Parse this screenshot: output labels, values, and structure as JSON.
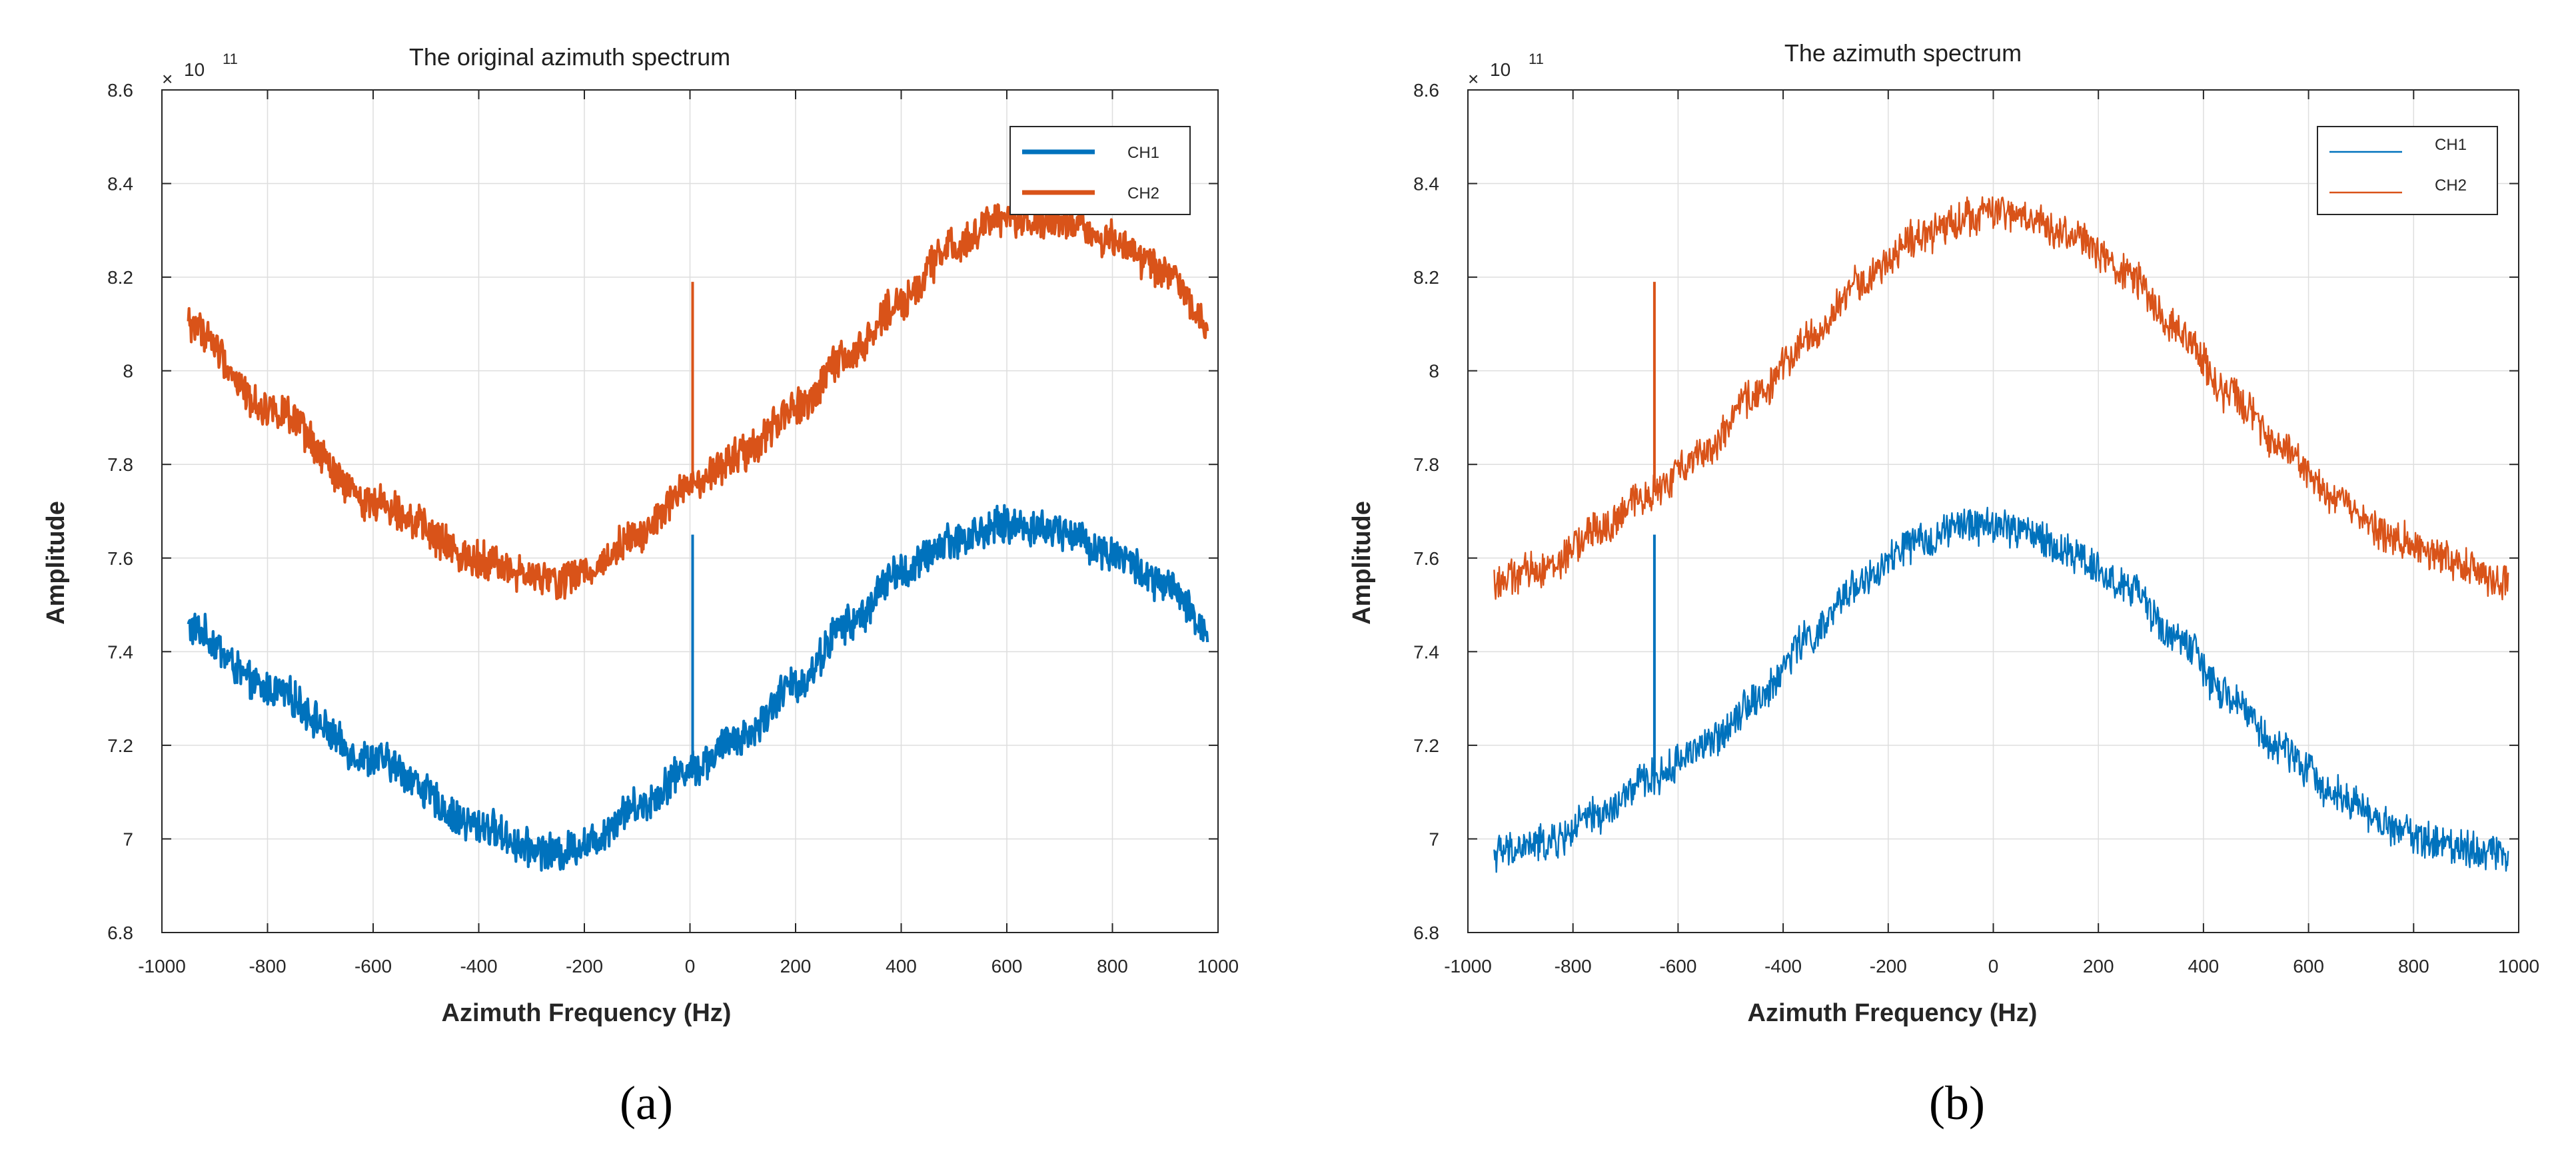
{
  "chart_data": [
    {
      "type": "line",
      "title": "The original azimuth spectrum",
      "panel_label": "(a)",
      "xlabel": "Azimuth Frequency (Hz)",
      "ylabel": "Amplitude",
      "exponent_label": "10",
      "exponent_power": "11",
      "xlim": [
        -1000,
        1000
      ],
      "ylim": [
        6.8,
        8.6
      ],
      "x_tick_labels": [
        "-1000",
        "-800",
        "-600",
        "-400",
        "-200",
        "0",
        "200",
        "400",
        "600",
        "800",
        "1000"
      ],
      "y_tick_labels": [
        "6.8",
        "7",
        "7.2",
        "7.4",
        "7.6",
        "7.8",
        "8",
        "8.2",
        "8.4",
        "8.6"
      ],
      "grid": true,
      "legend_position": "top-right",
      "legend_line_style": "thick",
      "x_range": [
        -950,
        980
      ],
      "series": [
        {
          "name": "CH1",
          "color": "#0072BD",
          "x": [
            -950,
            -800,
            -600,
            -400,
            -300,
            -250,
            -200,
            -100,
            0,
            100,
            200,
            300,
            400,
            500,
            600,
            700,
            800,
            900,
            980
          ],
          "values": [
            7.45,
            7.32,
            7.17,
            7.03,
            6.98,
            6.97,
            6.99,
            7.07,
            7.15,
            7.22,
            7.33,
            7.46,
            7.57,
            7.64,
            7.67,
            7.66,
            7.61,
            7.54,
            7.45
          ],
          "noise_amplitude": 0.035,
          "spike": {
            "x": 5,
            "to": 7.65
          }
        },
        {
          "name": "CH2",
          "color": "#D95319",
          "x": [
            -950,
            -800,
            -600,
            -400,
            -300,
            -250,
            -200,
            -100,
            0,
            100,
            200,
            300,
            400,
            500,
            600,
            700,
            800,
            900,
            980
          ],
          "values": [
            8.1,
            7.92,
            7.72,
            7.6,
            7.56,
            7.55,
            7.57,
            7.65,
            7.75,
            7.82,
            7.92,
            8.03,
            8.15,
            8.27,
            8.33,
            8.32,
            8.28,
            8.21,
            8.1
          ],
          "noise_amplitude": 0.035,
          "spike": {
            "x": 5,
            "to": 8.19
          }
        }
      ]
    },
    {
      "type": "line",
      "title": "The azimuth spectrum",
      "panel_label": "(b)",
      "xlabel": "Azimuth Frequency (Hz)",
      "ylabel": "Amplitude",
      "exponent_label": "10",
      "exponent_power": "11",
      "xlim": [
        -1000,
        1000
      ],
      "ylim": [
        6.8,
        8.6
      ],
      "x_tick_labels": [
        "-1000",
        "-800",
        "-600",
        "-400",
        "-200",
        "0",
        "200",
        "400",
        "600",
        "800",
        "1000"
      ],
      "y_tick_labels": [
        "6.8",
        "7",
        "7.2",
        "7.4",
        "7.6",
        "7.8",
        "8",
        "8.2",
        "8.4",
        "8.6"
      ],
      "grid": true,
      "legend_position": "top-right",
      "legend_line_style": "thin",
      "x_range": [
        -950,
        980
      ],
      "series": [
        {
          "name": "CH1",
          "color": "#0072BD",
          "x": [
            -950,
            -850,
            -750,
            -650,
            -550,
            -450,
            -350,
            -250,
            -150,
            -50,
            0,
            50,
            150,
            250,
            350,
            450,
            550,
            650,
            750,
            850,
            980
          ],
          "values": [
            6.97,
            6.99,
            7.05,
            7.13,
            7.2,
            7.3,
            7.43,
            7.55,
            7.63,
            7.67,
            7.67,
            7.66,
            7.61,
            7.54,
            7.43,
            7.3,
            7.19,
            7.1,
            7.03,
            6.99,
            6.97
          ],
          "noise_amplitude": 0.035,
          "spike": {
            "x": -645,
            "to": 7.65
          }
        },
        {
          "name": "CH2",
          "color": "#D95319",
          "x": [
            -950,
            -850,
            -750,
            -650,
            -550,
            -450,
            -350,
            -250,
            -150,
            -50,
            0,
            50,
            150,
            250,
            350,
            450,
            550,
            650,
            750,
            850,
            980
          ],
          "values": [
            7.55,
            7.58,
            7.66,
            7.74,
            7.83,
            7.95,
            8.07,
            8.19,
            8.28,
            8.33,
            8.34,
            8.33,
            8.29,
            8.21,
            8.09,
            7.95,
            7.83,
            7.73,
            7.65,
            7.6,
            7.55
          ],
          "noise_amplitude": 0.035,
          "spike": {
            "x": -645,
            "to": 8.19
          }
        }
      ]
    }
  ]
}
